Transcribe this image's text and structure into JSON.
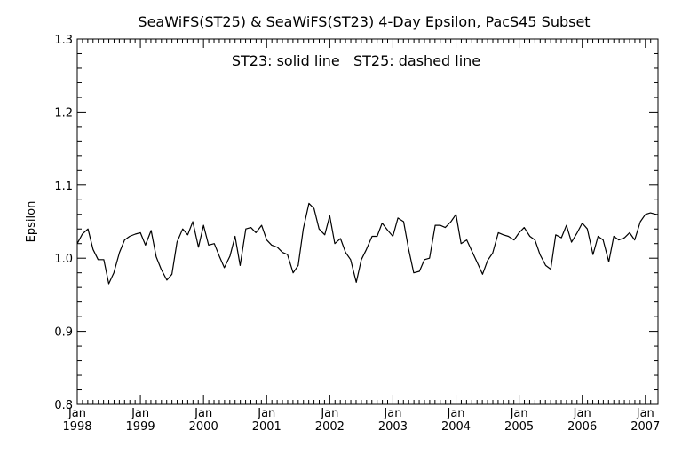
{
  "chart_data": {
    "type": "line",
    "title": "SeaWiFS(ST25) & SeaWiFS(ST23) 4-Day Epsilon, PacS45 Subset",
    "annotation": "ST23: solid line   ST25: dashed line",
    "xlabel": "",
    "ylabel": "Epsilon",
    "ylim": [
      0.8,
      1.3
    ],
    "yticks": [
      "0.8",
      "0.9",
      "1.0",
      "1.1",
      "1.2",
      "1.3"
    ],
    "xlim": [
      1998.0,
      2007.2
    ],
    "xticks": [
      {
        "month": "Jan",
        "year": "1998",
        "value": 1998
      },
      {
        "month": "Jan",
        "year": "1999",
        "value": 1999
      },
      {
        "month": "Jan",
        "year": "2000",
        "value": 2000
      },
      {
        "month": "Jan",
        "year": "2001",
        "value": 2001
      },
      {
        "month": "Jan",
        "year": "2002",
        "value": 2002
      },
      {
        "month": "Jan",
        "year": "2003",
        "value": 2003
      },
      {
        "month": "Jan",
        "year": "2004",
        "value": 2004
      },
      {
        "month": "Jan",
        "year": "2005",
        "value": 2005
      },
      {
        "month": "Jan",
        "year": "2006",
        "value": 2006
      },
      {
        "month": "Jan",
        "year": "2007",
        "value": 2007
      }
    ],
    "grid": false,
    "series": [
      {
        "name": "ST23",
        "style": "solid",
        "color": "#000000",
        "x": [
          1998.0,
          1998.08,
          1998.17,
          1998.25,
          1998.33,
          1998.42,
          1998.5,
          1998.58,
          1998.67,
          1998.75,
          1998.83,
          1998.92,
          1999.0,
          1999.08,
          1999.17,
          1999.25,
          1999.33,
          1999.42,
          1999.5,
          1999.58,
          1999.67,
          1999.75,
          1999.83,
          1999.92,
          2000.0,
          2000.08,
          2000.17,
          2000.25,
          2000.33,
          2000.42,
          2000.5,
          2000.58,
          2000.67,
          2000.75,
          2000.83,
          2000.92,
          2001.0,
          2001.08,
          2001.17,
          2001.25,
          2001.33,
          2001.42,
          2001.5,
          2001.58,
          2001.67,
          2001.75,
          2001.83,
          2001.92,
          2002.0,
          2002.08,
          2002.17,
          2002.25,
          2002.33,
          2002.42,
          2002.5,
          2002.58,
          2002.67,
          2002.75,
          2002.83,
          2002.92,
          2003.0,
          2003.08,
          2003.17,
          2003.25,
          2003.33,
          2003.42,
          2003.5,
          2003.58,
          2003.67,
          2003.75,
          2003.83,
          2003.92,
          2004.0,
          2004.08,
          2004.17,
          2004.25,
          2004.33,
          2004.42,
          2004.5,
          2004.58,
          2004.67,
          2004.75,
          2004.83,
          2004.92,
          2005.0,
          2005.08,
          2005.17,
          2005.25,
          2005.33,
          2005.42,
          2005.5,
          2005.58,
          2005.67,
          2005.75,
          2005.83,
          2005.92,
          2006.0,
          2006.08,
          2006.17,
          2006.25,
          2006.33,
          2006.42,
          2006.5,
          2006.58,
          2006.67,
          2006.75,
          2006.83,
          2006.92,
          2007.0,
          2007.08,
          2007.17
        ],
        "y": [
          1.02,
          1.033,
          1.04,
          1.012,
          0.998,
          0.998,
          0.965,
          0.98,
          1.008,
          1.025,
          1.03,
          1.033,
          1.035,
          1.018,
          1.038,
          1.002,
          0.985,
          0.97,
          0.978,
          1.022,
          1.04,
          1.032,
          1.05,
          1.015,
          1.045,
          1.018,
          1.02,
          1.003,
          0.987,
          1.003,
          1.03,
          0.99,
          1.04,
          1.042,
          1.035,
          1.045,
          1.025,
          1.018,
          1.015,
          1.008,
          1.005,
          0.98,
          0.99,
          1.04,
          1.075,
          1.068,
          1.04,
          1.032,
          1.058,
          1.02,
          1.027,
          1.008,
          0.998,
          0.967,
          0.998,
          1.012,
          1.03,
          1.03,
          1.048,
          1.038,
          1.03,
          1.055,
          1.05,
          1.012,
          0.98,
          0.982,
          0.998,
          1.0,
          1.045,
          1.045,
          1.042,
          1.05,
          1.06,
          1.02,
          1.025,
          1.01,
          0.995,
          0.978,
          0.997,
          1.007,
          1.035,
          1.032,
          1.03,
          1.025,
          1.035,
          1.042,
          1.03,
          1.025,
          1.005,
          0.99,
          0.985,
          1.032,
          1.028,
          1.045,
          1.022,
          1.035,
          1.048,
          1.04,
          1.005,
          1.03,
          1.025,
          0.995,
          1.03,
          1.025,
          1.028,
          1.035,
          1.025,
          1.05,
          1.06,
          1.062,
          1.06
        ]
      }
    ]
  }
}
